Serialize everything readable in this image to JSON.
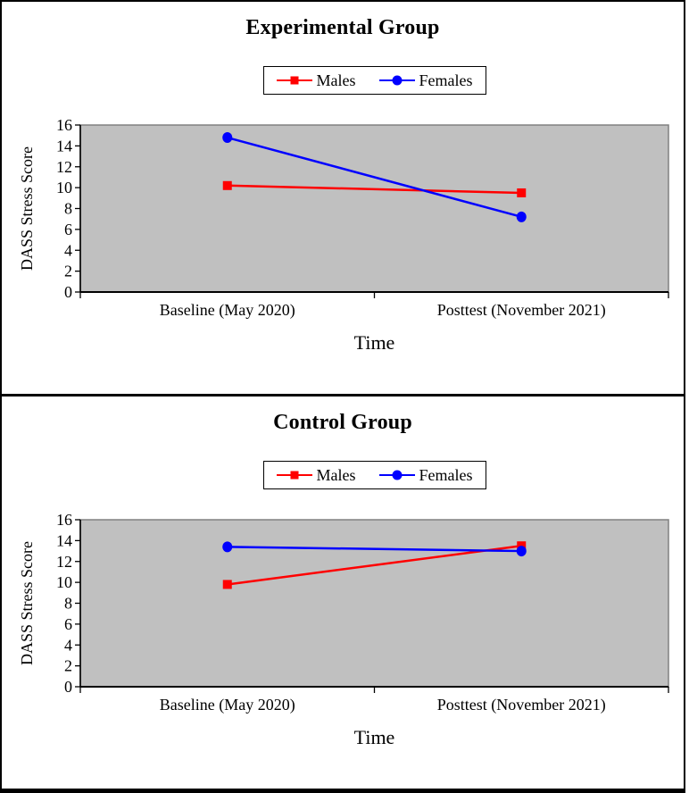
{
  "page": {
    "background": "#FFFFFF",
    "border_color": "#000000"
  },
  "chart_data": [
    {
      "type": "line",
      "title": "Experimental Group",
      "xlabel": "Time",
      "ylabel": "DASS Stress Score",
      "categories": [
        "Baseline (May 2020)",
        "Posttest (November 2021)"
      ],
      "series": [
        {
          "name": "Males",
          "color": "#FF0000",
          "marker": "square",
          "values": [
            10.2,
            9.5
          ]
        },
        {
          "name": "Females",
          "color": "#0000FF",
          "marker": "circle",
          "values": [
            14.8,
            7.2
          ]
        }
      ],
      "ylim": [
        0,
        16
      ],
      "ytick_step": 2,
      "yticks": [
        "0",
        "2",
        "4",
        "6",
        "8",
        "10",
        "12",
        "14",
        "16"
      ],
      "plot_bg": "#C0C0C0",
      "plot_border": "#808080",
      "legend_position": "top-center",
      "grid": "off"
    },
    {
      "type": "line",
      "title": "Control Group",
      "xlabel": "Time",
      "ylabel": "DASS Stress Score",
      "categories": [
        "Baseline (May 2020)",
        "Posttest (November 2021)"
      ],
      "series": [
        {
          "name": "Males",
          "color": "#FF0000",
          "marker": "square",
          "values": [
            9.8,
            13.5
          ]
        },
        {
          "name": "Females",
          "color": "#0000FF",
          "marker": "circle",
          "values": [
            13.4,
            13.0
          ]
        }
      ],
      "ylim": [
        0,
        16
      ],
      "ytick_step": 2,
      "yticks": [
        "0",
        "2",
        "4",
        "6",
        "8",
        "10",
        "12",
        "14",
        "16"
      ],
      "plot_bg": "#C0C0C0",
      "plot_border": "#808080",
      "legend_position": "top-center",
      "grid": "off"
    }
  ]
}
